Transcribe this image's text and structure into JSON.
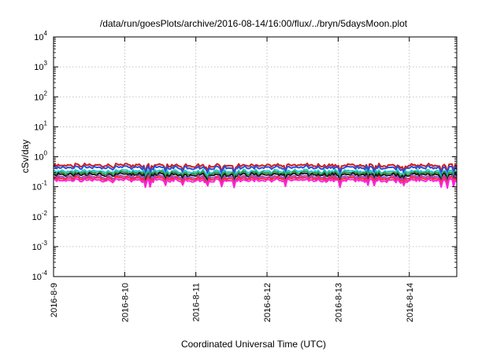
{
  "chart_data": {
    "type": "line",
    "title": "/data/run/goesPlots/archive/2016-08-14/16:00/flux/../bryn/5daysMoon.plot",
    "xlabel": "Coordinated Universal Time (UTC)",
    "ylabel": "cSv/day",
    "yscale": "log",
    "ylim": [
      0.0001,
      10000
    ],
    "y_tick_labels": [
      {
        "base": "10",
        "exp": "-4"
      },
      {
        "base": "10",
        "exp": "-3"
      },
      {
        "base": "10",
        "exp": "-2"
      },
      {
        "base": "10",
        "exp": "-1"
      },
      {
        "base": "10",
        "exp": "0"
      },
      {
        "base": "10",
        "exp": "1"
      },
      {
        "base": "10",
        "exp": "2"
      },
      {
        "base": "10",
        "exp": "3"
      },
      {
        "base": "10",
        "exp": "4"
      }
    ],
    "x_tick_labels": [
      "2016-8-9",
      "2016-8-10",
      "2016-8-11",
      "2016-8-12",
      "2016-8-13",
      "2016-8-14"
    ],
    "xlim": [
      "2016-08-09 00:00",
      "2016-08-14 16:00"
    ],
    "grid": true,
    "legend": "none",
    "series": [
      {
        "color": "#d01c1c",
        "level": 0.52
      },
      {
        "color": "#2b4fd8",
        "level": 0.44
      },
      {
        "color": "#24c8d8",
        "level": 0.33
      },
      {
        "color": "#2e9a3a",
        "level": 0.29
      },
      {
        "color": "#1a1a1a",
        "level": 0.255
      },
      {
        "color": "#9a4ad0",
        "level": 0.215
      },
      {
        "color": "#ff2b2b",
        "level": 0.19
      },
      {
        "color": "#ff22dd",
        "level": 0.165
      }
    ]
  }
}
